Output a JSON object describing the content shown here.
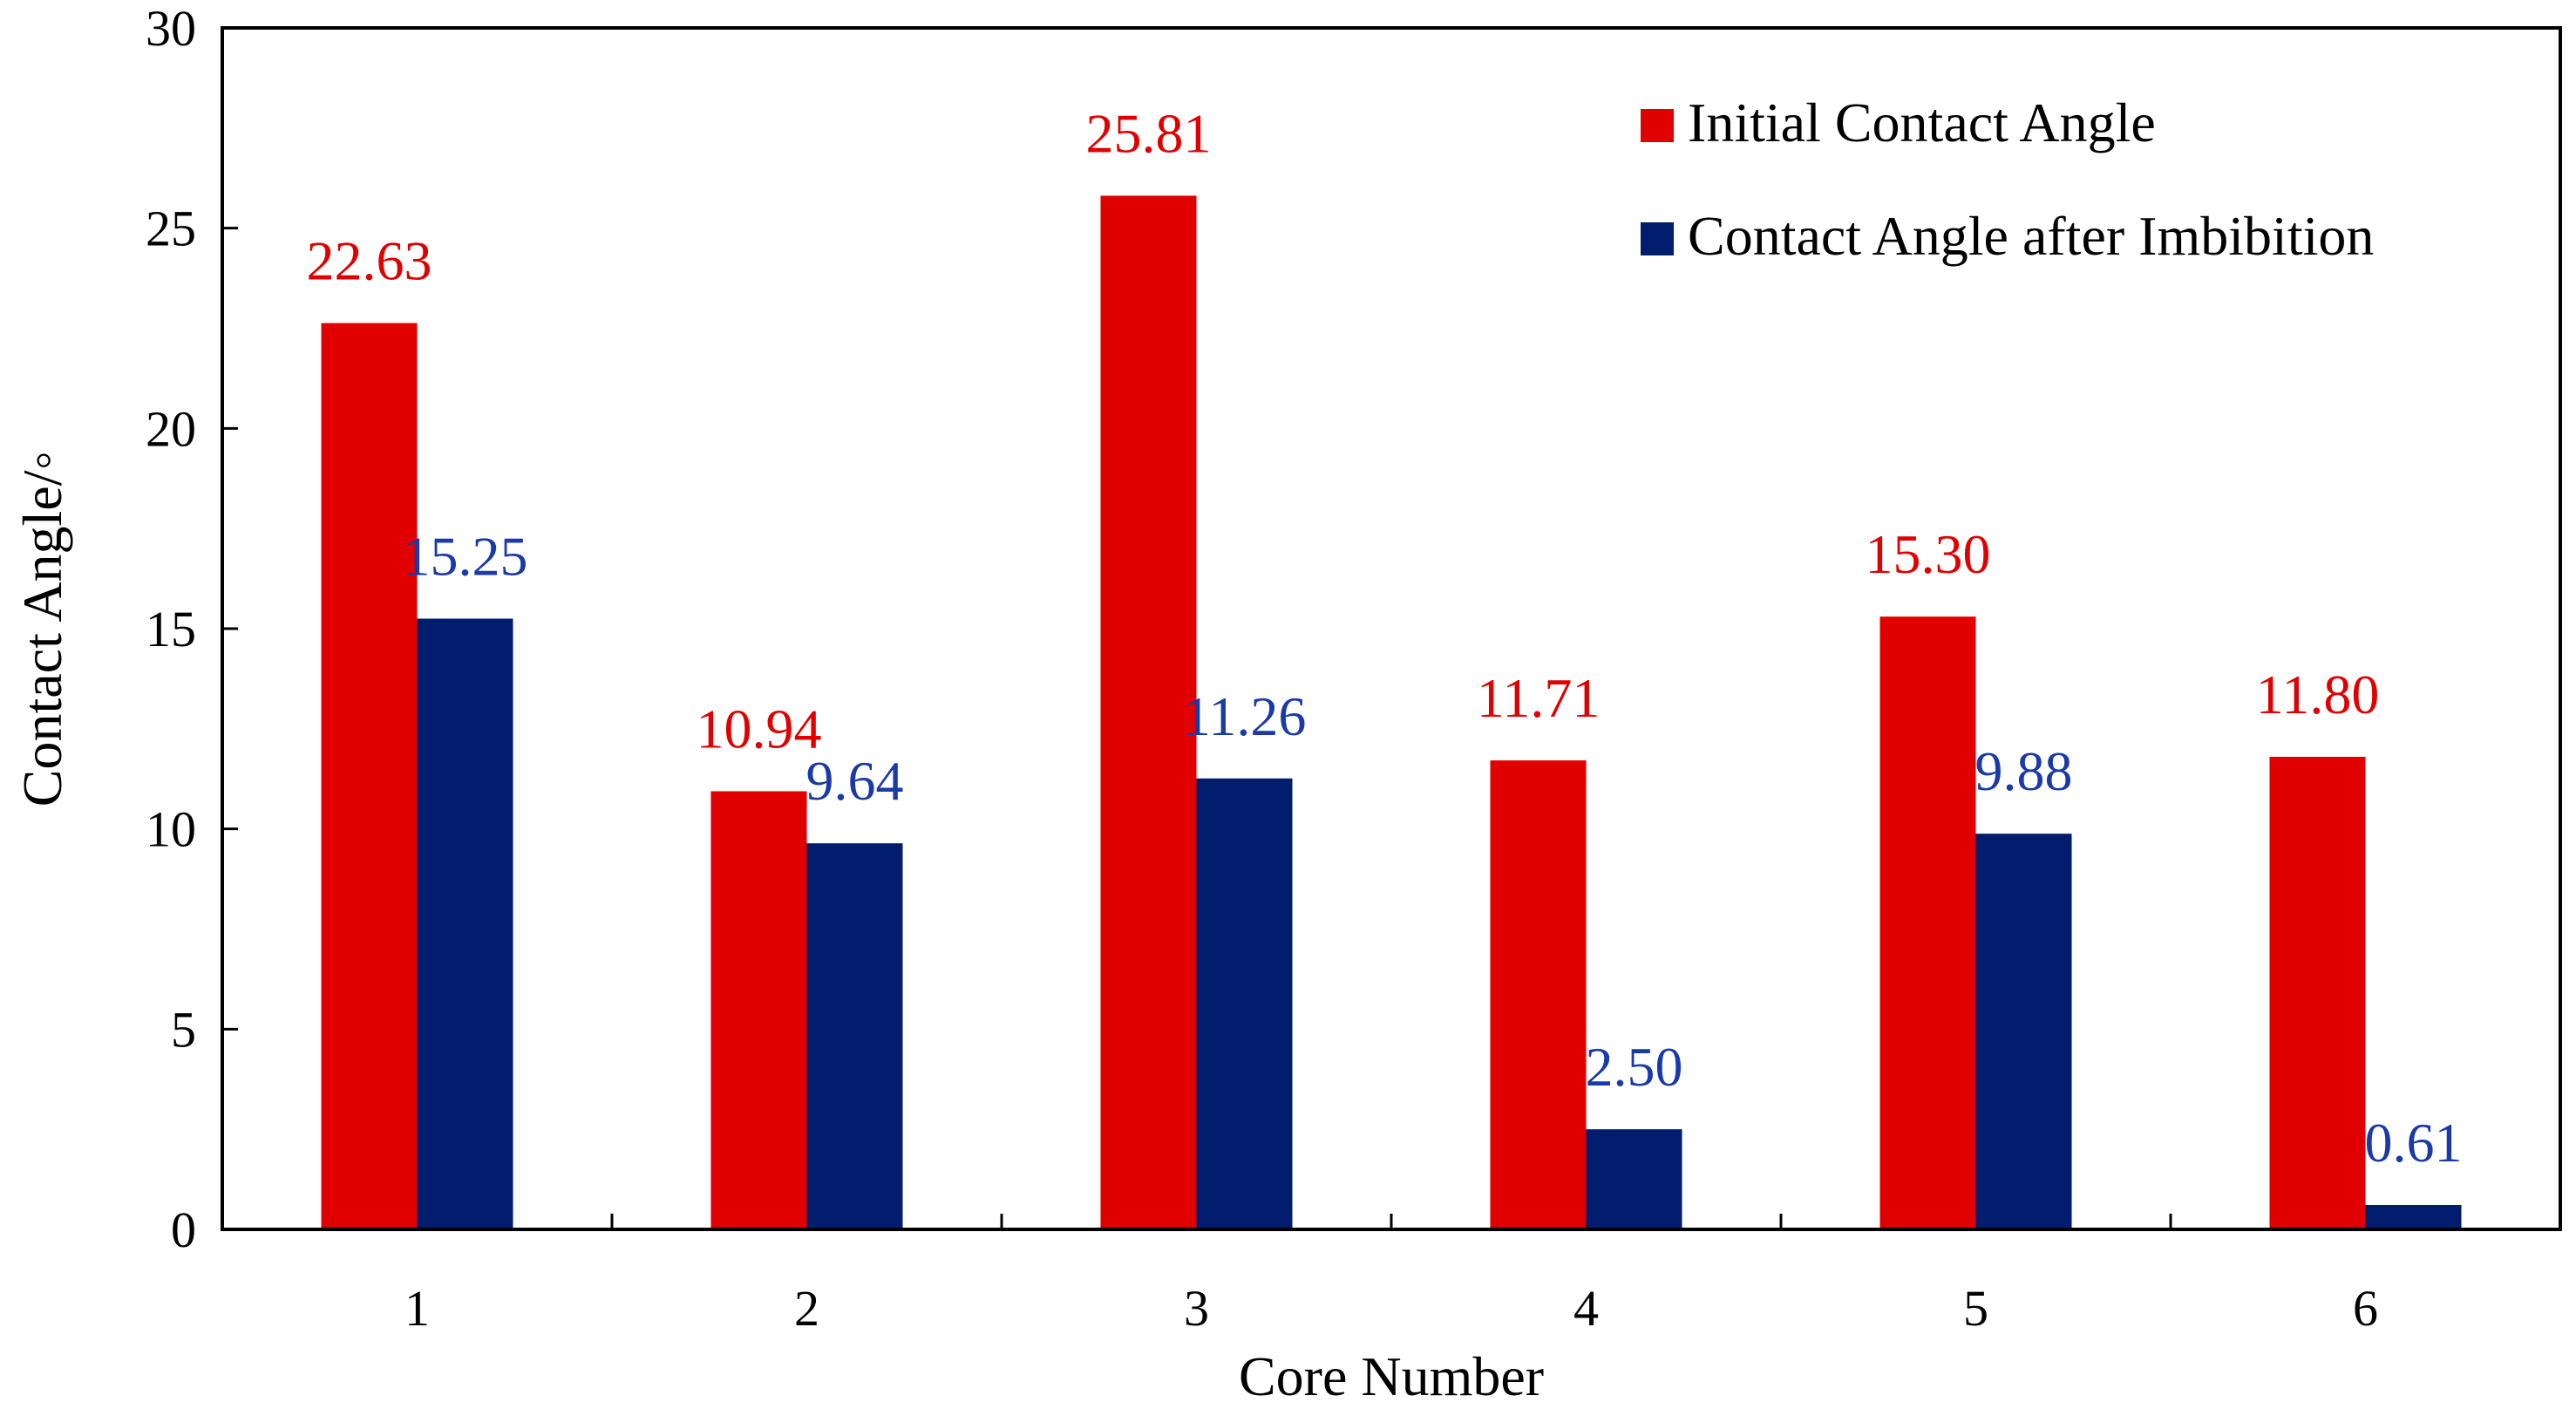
{
  "chart_data": {
    "type": "bar",
    "title": "",
    "xlabel": "Core Number",
    "ylabel": "Contact Angle/◦",
    "ylim": [
      0,
      30
    ],
    "yticks": [
      0,
      5,
      10,
      15,
      20,
      25,
      30
    ],
    "grid": false,
    "legend_position": "top-right",
    "categories": [
      "1",
      "2",
      "3",
      "4",
      "5",
      "6"
    ],
    "series": [
      {
        "name": "Initial Contact Angle",
        "color": "#e00000",
        "values": [
          22.63,
          10.94,
          25.81,
          11.71,
          15.3,
          11.8
        ],
        "labels": [
          "22.63",
          "10.94",
          "25.81",
          "11.71",
          "15.30",
          "11.80"
        ]
      },
      {
        "name": "Contact Angle after Imbibition",
        "color": "#021d6e",
        "label_color": "#1a3aa8",
        "values": [
          15.25,
          9.64,
          11.26,
          2.5,
          9.88,
          0.61
        ],
        "labels": [
          "15.25",
          "9.64",
          "11.26",
          "2.50",
          "9.88",
          "0.61"
        ]
      }
    ]
  }
}
